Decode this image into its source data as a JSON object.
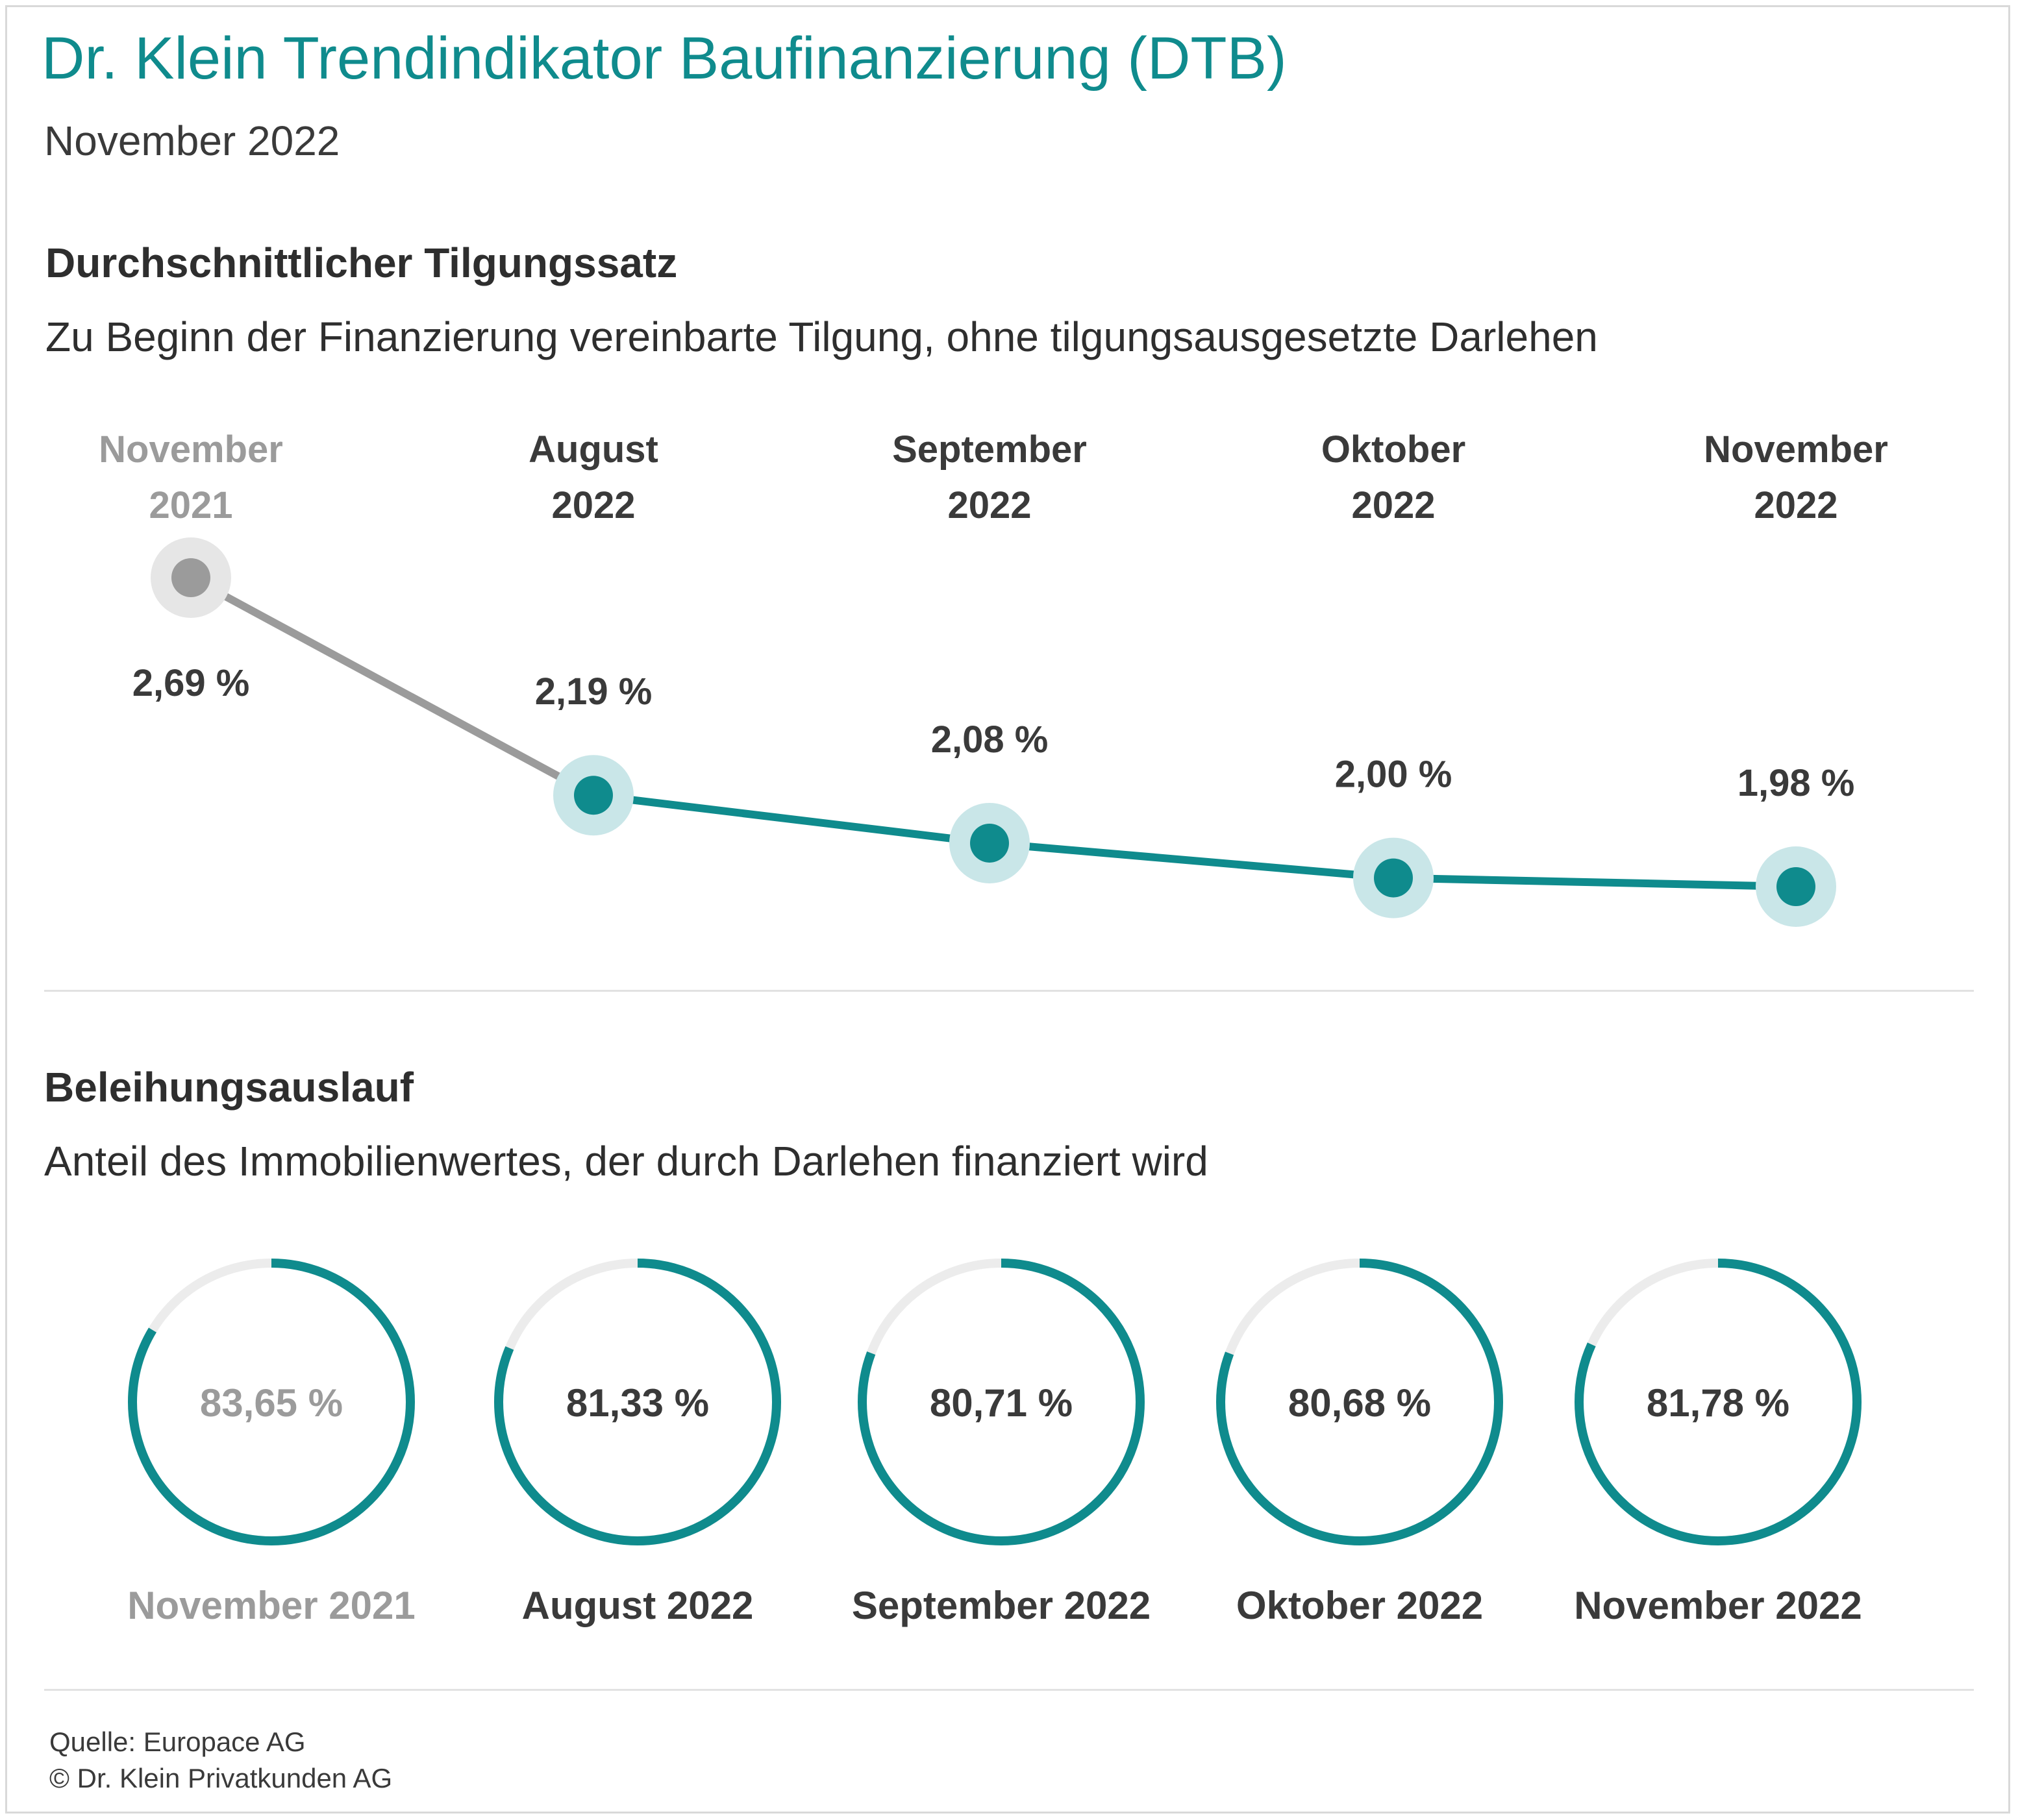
{
  "header": {
    "title": "Dr. Klein Trendindikator Baufinanzierung (DTB)",
    "subtitle": "November 2022"
  },
  "section1": {
    "heading": "Durchschnittlicher Tilgungssatz",
    "description": "Zu Beginn der Finanzierung vereinbarte Tilgung, ohne tilgungsausgesetzte Darlehen"
  },
  "section2": {
    "heading": "Beleihungsauslauf",
    "description": "Anteil des Immobilienwertes, der durch Darlehen finanziert wird"
  },
  "footer": {
    "source": "Quelle: Europace AG",
    "copyright": "© Dr. Klein Privatkunden AG"
  },
  "colors": {
    "teal": "#0f8b8d",
    "teal_light": "#c9e6e8",
    "gray": "#9b9b9b",
    "gray_light": "#e6e6e6",
    "ring_track": "#ececec",
    "label_dark": "#3a3a3a",
    "label_muted": "#9b9b9b"
  },
  "chart_data": [
    {
      "type": "line",
      "title": "Durchschnittlicher Tilgungssatz",
      "unit": "%",
      "categories": [
        [
          "November",
          "2021"
        ],
        [
          "August",
          "2022"
        ],
        [
          "September",
          "2022"
        ],
        [
          "Oktober",
          "2022"
        ],
        [
          "November",
          "2022"
        ]
      ],
      "values": [
        2.69,
        2.19,
        2.08,
        2.0,
        1.98
      ],
      "value_labels": [
        "2,69 %",
        "2,19 %",
        "2,08 %",
        "2,00 %",
        "1,98 %"
      ],
      "highlight": [
        false,
        true,
        true,
        true,
        true
      ],
      "grid": false
    },
    {
      "type": "pie",
      "title": "Beleihungsauslauf",
      "subtype": "donut-rings",
      "categories": [
        "November 2021",
        "August 2022",
        "September 2022",
        "Oktober 2022",
        "November 2022"
      ],
      "values": [
        83.65,
        81.33,
        80.71,
        80.68,
        81.78
      ],
      "value_labels": [
        "83,65 %",
        "81,33 %",
        "80,71 %",
        "80,68 %",
        "81,78 %"
      ],
      "highlight": [
        false,
        true,
        true,
        true,
        true
      ],
      "max": 100
    }
  ]
}
